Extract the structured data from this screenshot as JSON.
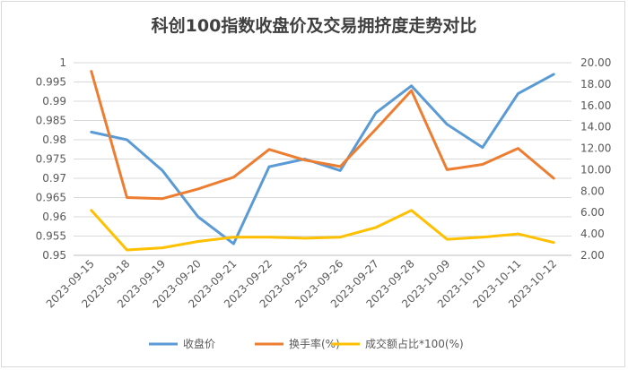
{
  "chart_data": {
    "type": "line",
    "title": "科创100指数收盘价及交易拥挤度走势对比",
    "categories": [
      "2023-09-15",
      "2023-09-18",
      "2023-09-19",
      "2023-09-20",
      "2023-09-21",
      "2023-09-22",
      "2023-09-25",
      "2023-09-26",
      "2023-09-27",
      "2023-09-28",
      "2023-10-09",
      "2023-10-10",
      "2023-10-11",
      "2023-10-12"
    ],
    "y_left": {
      "min": 0.95,
      "max": 1.0,
      "ticks": [
        "0.95",
        "0.955",
        "0.96",
        "0.965",
        "0.97",
        "0.975",
        "0.98",
        "0.985",
        "0.99",
        "0.995",
        "1"
      ]
    },
    "y_right": {
      "min": 2.0,
      "max": 20.0,
      "ticks": [
        "2.00",
        "4.00",
        "6.00",
        "8.00",
        "10.00",
        "12.00",
        "14.00",
        "16.00",
        "18.00",
        "20.00"
      ]
    },
    "grid": true,
    "legend_position": "bottom",
    "series": [
      {
        "name": "收盘价",
        "axis": "left",
        "color": "#5b9bd5",
        "values": [
          0.982,
          0.98,
          0.972,
          0.96,
          0.953,
          0.973,
          0.975,
          0.972,
          0.987,
          0.994,
          0.984,
          0.978,
          0.992,
          0.997
        ]
      },
      {
        "name": "换手率(%)",
        "axis": "right",
        "color": "#ed7d31",
        "values": [
          19.2,
          7.4,
          7.3,
          8.2,
          9.3,
          11.9,
          10.9,
          10.3,
          13.8,
          17.4,
          10.0,
          10.5,
          12.0,
          9.2
        ]
      },
      {
        "name": "成交额占比*100(%)",
        "axis": "right",
        "color": "#ffc000",
        "values": [
          6.2,
          2.5,
          2.7,
          3.3,
          3.7,
          3.7,
          3.6,
          3.7,
          4.6,
          6.2,
          3.5,
          3.7,
          4.0,
          3.2
        ]
      }
    ]
  }
}
